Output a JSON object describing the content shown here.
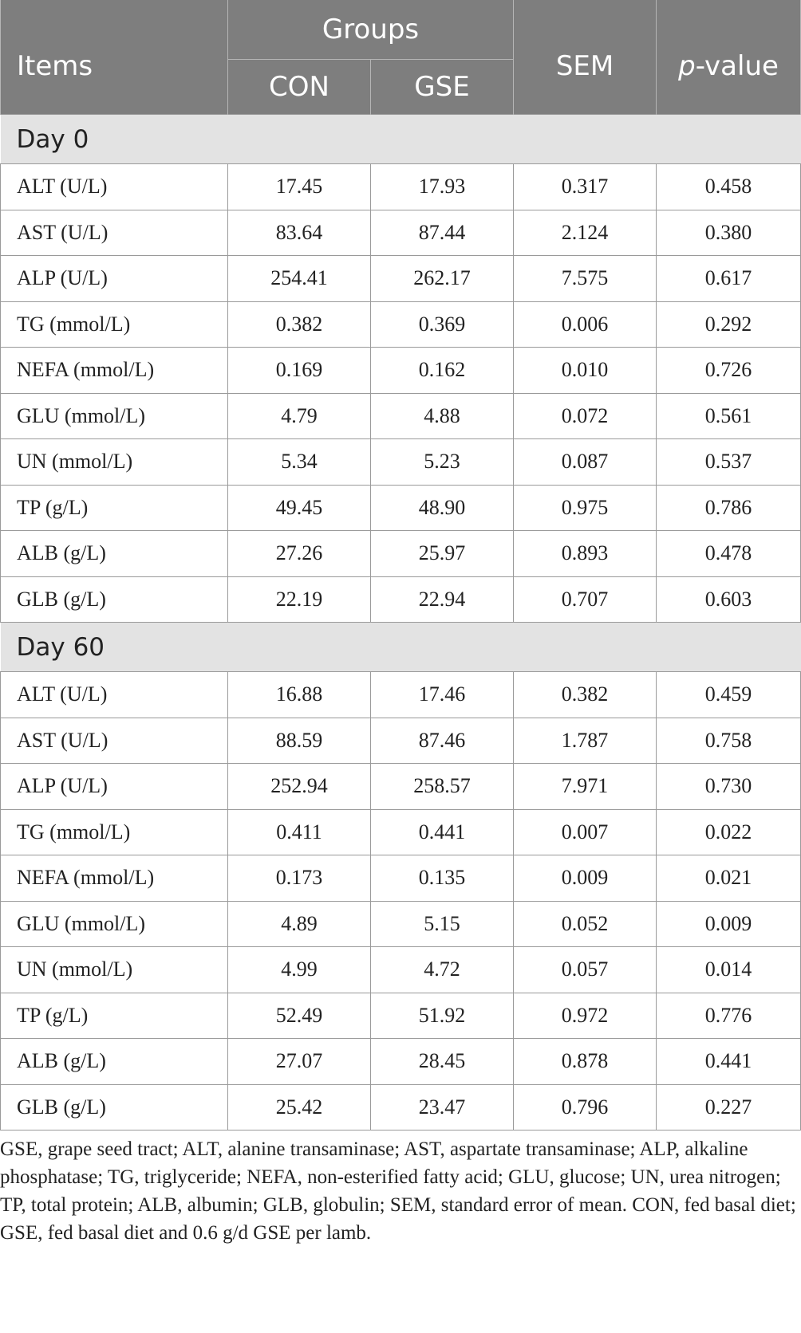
{
  "table": {
    "headers": {
      "items": "Items",
      "groups": "Groups",
      "sem": "SEM",
      "pvalue_prefix": "p",
      "pvalue_suffix": "-value",
      "con": "CON",
      "gse": "GSE"
    },
    "sections": [
      {
        "title": "Day 0",
        "rows": [
          {
            "item": "ALT (U/L)",
            "con": "17.45",
            "gse": "17.93",
            "sem": "0.317",
            "p": "0.458"
          },
          {
            "item": "AST (U/L)",
            "con": "83.64",
            "gse": "87.44",
            "sem": "2.124",
            "p": "0.380"
          },
          {
            "item": "ALP (U/L)",
            "con": "254.41",
            "gse": "262.17",
            "sem": "7.575",
            "p": "0.617"
          },
          {
            "item": "TG (mmol/L)",
            "con": "0.382",
            "gse": "0.369",
            "sem": "0.006",
            "p": "0.292"
          },
          {
            "item": "NEFA (mmol/L)",
            "con": "0.169",
            "gse": "0.162",
            "sem": "0.010",
            "p": "0.726"
          },
          {
            "item": "GLU (mmol/L)",
            "con": "4.79",
            "gse": "4.88",
            "sem": "0.072",
            "p": "0.561"
          },
          {
            "item": "UN (mmol/L)",
            "con": "5.34",
            "gse": "5.23",
            "sem": "0.087",
            "p": "0.537"
          },
          {
            "item": "TP (g/L)",
            "con": "49.45",
            "gse": "48.90",
            "sem": "0.975",
            "p": "0.786"
          },
          {
            "item": "ALB (g/L)",
            "con": "27.26",
            "gse": "25.97",
            "sem": "0.893",
            "p": "0.478"
          },
          {
            "item": "GLB (g/L)",
            "con": "22.19",
            "gse": "22.94",
            "sem": "0.707",
            "p": "0.603"
          }
        ]
      },
      {
        "title": "Day 60",
        "rows": [
          {
            "item": "ALT (U/L)",
            "con": "16.88",
            "gse": "17.46",
            "sem": "0.382",
            "p": "0.459"
          },
          {
            "item": "AST (U/L)",
            "con": "88.59",
            "gse": "87.46",
            "sem": "1.787",
            "p": "0.758"
          },
          {
            "item": "ALP (U/L)",
            "con": "252.94",
            "gse": "258.57",
            "sem": "7.971",
            "p": "0.730"
          },
          {
            "item": "TG (mmol/L)",
            "con": "0.411",
            "gse": "0.441",
            "sem": "0.007",
            "p": "0.022"
          },
          {
            "item": "NEFA (mmol/L)",
            "con": "0.173",
            "gse": "0.135",
            "sem": "0.009",
            "p": "0.021"
          },
          {
            "item": "GLU (mmol/L)",
            "con": "4.89",
            "gse": "5.15",
            "sem": "0.052",
            "p": "0.009"
          },
          {
            "item": "UN (mmol/L)",
            "con": "4.99",
            "gse": "4.72",
            "sem": "0.057",
            "p": "0.014"
          },
          {
            "item": "TP (g/L)",
            "con": "52.49",
            "gse": "51.92",
            "sem": "0.972",
            "p": "0.776"
          },
          {
            "item": "ALB (g/L)",
            "con": "27.07",
            "gse": "28.45",
            "sem": "0.878",
            "p": "0.441"
          },
          {
            "item": "GLB (g/L)",
            "con": "25.42",
            "gse": "23.47",
            "sem": "0.796",
            "p": "0.227"
          }
        ]
      }
    ]
  },
  "footnote": "GSE, grape seed tract; ALT, alanine transaminase; AST, aspartate transaminase; ALP, alkaline phosphatase; TG, triglyceride; NEFA, non-esterified fatty acid; GLU, glucose; UN, urea nitrogen; TP, total protein; ALB, albumin; GLB, globulin; SEM, standard error of mean. CON, fed basal diet; GSE, fed basal diet and 0.6 g/d GSE per lamb.",
  "colors": {
    "header_bg": "#7e7e7e",
    "section_bg": "#e3e3e3",
    "grid_line": "#9a9a9a"
  }
}
